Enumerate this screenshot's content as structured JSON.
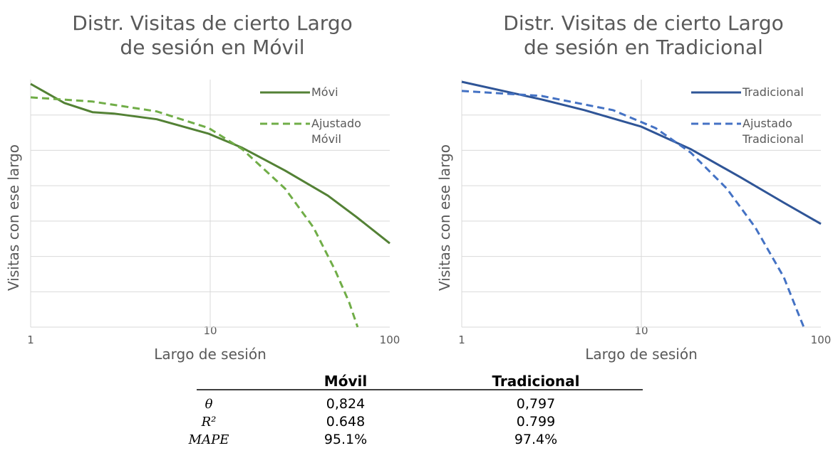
{
  "chart_data": [
    {
      "type": "line",
      "title": [
        "Distr. Visitas de cierto Largo",
        "de sesión en Móvil"
      ],
      "x_label": "Largo de sesión",
      "y_label": "Visitas con ese largo",
      "xlim": [
        1,
        100
      ],
      "xticks": [
        1,
        10,
        100
      ],
      "xscale": "log",
      "ylim": [
        0,
        7
      ],
      "yticks": [
        0,
        1,
        2,
        3,
        4,
        5,
        6,
        7
      ],
      "grid": true,
      "legend": "upper right",
      "series": [
        {
          "name": "Móvi",
          "color": "#538135",
          "style": "solid",
          "x": [
            1,
            1.54,
            2.21,
            2.91,
            5.04,
            9.82,
            15.1,
            26.1,
            45.2,
            65.1,
            100
          ],
          "values": [
            6.88,
            6.34,
            6.08,
            6.04,
            5.88,
            5.47,
            5.07,
            4.43,
            3.72,
            3.12,
            2.37
          ]
        },
        {
          "name": "Ajustado Móvil",
          "color": "#70ad47",
          "style": "dashed",
          "x": [
            1,
            2.21,
            5.04,
            9.82,
            15.1,
            26.1,
            37.6,
            49.6,
            59.4,
            66.2
          ],
          "values": [
            6.5,
            6.38,
            6.1,
            5.63,
            5.03,
            3.92,
            2.82,
            1.61,
            0.7,
            0
          ]
        }
      ]
    },
    {
      "type": "line",
      "title": [
        "Distr. Visitas de cierto Largo",
        "de sesión en Tradicional"
      ],
      "x_label": "Largo de sesión",
      "y_label": "Visitas con ese largo",
      "xlim": [
        1,
        100
      ],
      "xticks": [
        1,
        10,
        100
      ],
      "xscale": "log",
      "ylim": [
        0,
        7
      ],
      "yticks": [
        0,
        1,
        2,
        3,
        4,
        5,
        6,
        7
      ],
      "grid": true,
      "legend": "upper right",
      "series": [
        {
          "name": "Tradicional",
          "color": "#2f5597",
          "style": "solid",
          "x": [
            1,
            2.78,
            4.81,
            10,
            18.9,
            35.9,
            62.2,
            100
          ],
          "values": [
            6.94,
            6.44,
            6.14,
            5.67,
            5.03,
            4.23,
            3.52,
            2.92
          ]
        },
        {
          "name": "Ajustado Tradicional",
          "color": "#4472c4",
          "style": "dashed",
          "x": [
            1,
            2.78,
            6.94,
            12,
            18.9,
            29.9,
            43.1,
            62.2,
            74.6,
            80.3
          ],
          "values": [
            6.68,
            6.54,
            6.14,
            5.63,
            4.93,
            3.92,
            2.82,
            1.41,
            0.4,
            0
          ]
        }
      ]
    }
  ],
  "table": {
    "columns": [
      "Móvil",
      "Tradicional"
    ],
    "rows": [
      {
        "label": "θ",
        "values": [
          "0,824",
          "0,797"
        ]
      },
      {
        "label": "R²",
        "values": [
          "0.648",
          "0.799"
        ]
      },
      {
        "label": "MAPE",
        "values": [
          "95.1%",
          "97.4%"
        ]
      }
    ]
  }
}
